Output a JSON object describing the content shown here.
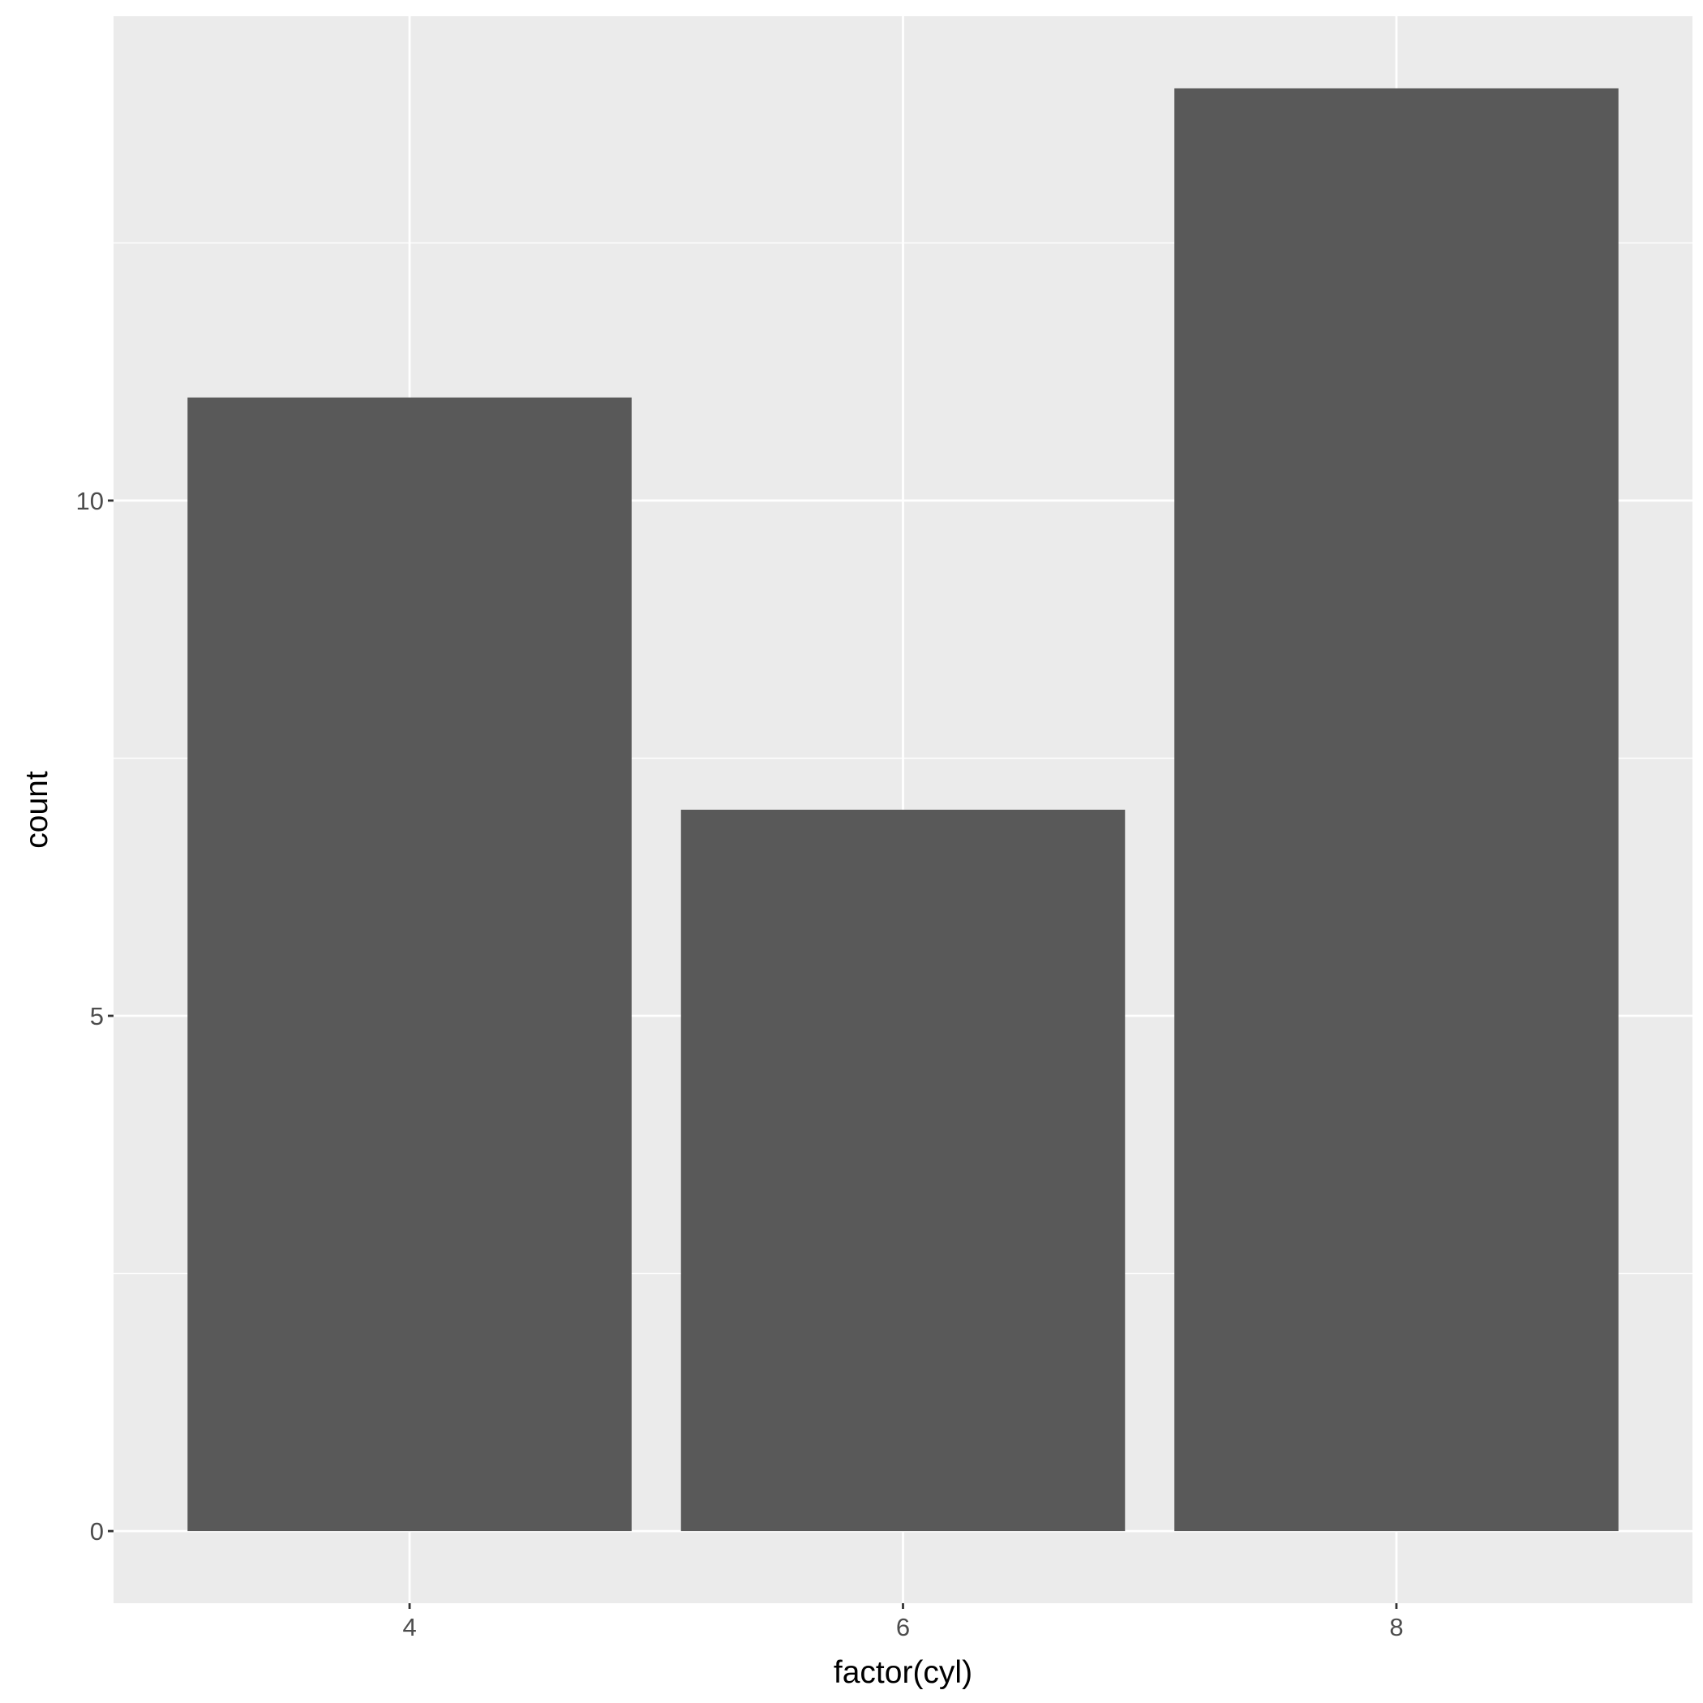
{
  "chart_data": {
    "type": "bar",
    "title": "",
    "xlabel": "factor(cyl)",
    "ylabel": "count",
    "categories": [
      "4",
      "6",
      "8"
    ],
    "values": [
      11,
      7,
      14
    ],
    "ylim": [
      -0.7,
      14.7
    ],
    "yticks": [
      0,
      5,
      10
    ],
    "ytick_labels": [
      "0",
      "5",
      "10"
    ],
    "grid": true,
    "legend": "none",
    "colors": {
      "panel": "#EBEBEB",
      "grid": "#FFFFFF",
      "bar": "#595959",
      "text": "#4D4D4D",
      "title": "#000000"
    }
  }
}
